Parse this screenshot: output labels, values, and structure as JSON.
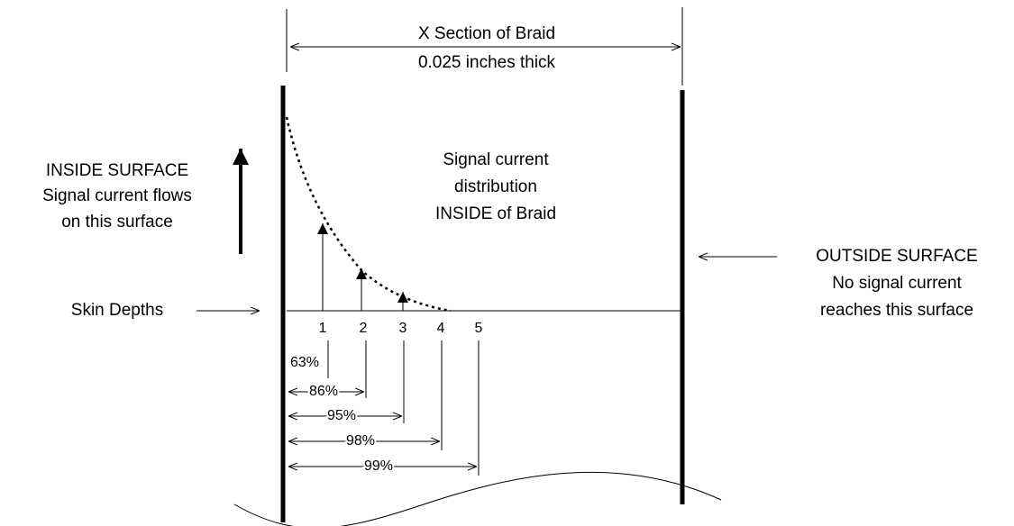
{
  "title": {
    "lines": [
      "X Section of Braid",
      "0.025 inches thick"
    ]
  },
  "inside_surface": {
    "lines": [
      "INSIDE SURFACE",
      "Signal current flows",
      "on this surface"
    ]
  },
  "distribution": {
    "lines": [
      "Signal current",
      "distribution",
      "INSIDE of Braid"
    ]
  },
  "skin_depths_label": "Skin Depths",
  "outside_surface": {
    "lines": [
      "OUTSIDE SURFACE",
      "No signal current",
      "reaches this surface"
    ]
  },
  "depths": [
    "1",
    "2",
    "3",
    "4",
    "5"
  ],
  "percentages": [
    "63%",
    "86%",
    "95%",
    "98%",
    "99%"
  ]
}
